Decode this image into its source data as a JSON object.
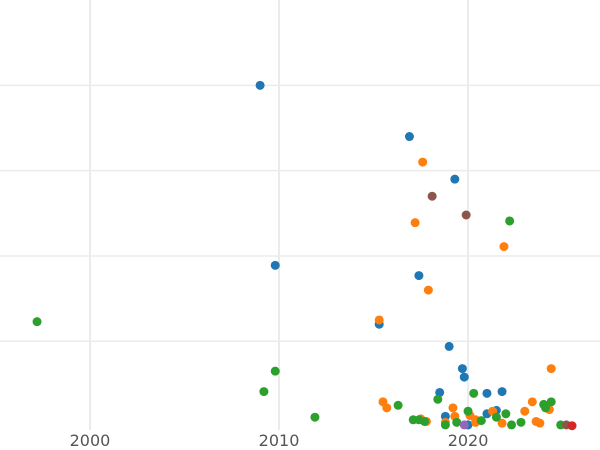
{
  "chart_data": {
    "type": "scatter",
    "title": "",
    "xlabel": "",
    "ylabel": "",
    "xlim": [
      1995.24,
      2026.98
    ],
    "ylim": [
      -0.04,
      5.0
    ],
    "x_ticks": [
      2000,
      2010,
      2020
    ],
    "x_tick_labels": [
      "2000",
      "2010",
      "2020"
    ],
    "y_gridlines": [
      1,
      2,
      3,
      4
    ],
    "grid": true,
    "legend": "none",
    "series": [
      {
        "color": "#1f77b4",
        "points": [
          [
            2009.0,
            4.0
          ],
          [
            2016.9,
            3.4
          ],
          [
            2019.3,
            2.9
          ],
          [
            2009.8,
            1.89
          ],
          [
            2017.4,
            1.77
          ],
          [
            2015.3,
            1.2
          ],
          [
            2019.0,
            0.94
          ],
          [
            2019.7,
            0.68
          ],
          [
            2019.8,
            0.58
          ],
          [
            2018.5,
            0.4
          ],
          [
            2021.0,
            0.39
          ],
          [
            2021.8,
            0.41
          ],
          [
            2018.8,
            0.12
          ],
          [
            2021.0,
            0.15
          ],
          [
            2021.5,
            0.19
          ],
          [
            2020.0,
            0.02
          ]
        ]
      },
      {
        "color": "#ff7f0e",
        "points": [
          [
            2017.6,
            3.1
          ],
          [
            2017.2,
            2.39
          ],
          [
            2021.9,
            2.11
          ],
          [
            2017.9,
            1.6
          ],
          [
            2015.3,
            1.25
          ],
          [
            2024.4,
            0.68
          ],
          [
            2015.5,
            0.29
          ],
          [
            2015.7,
            0.22
          ],
          [
            2019.2,
            0.22
          ],
          [
            2023.4,
            0.29
          ],
          [
            2023.0,
            0.18
          ],
          [
            2024.3,
            0.2
          ],
          [
            2017.5,
            0.09
          ],
          [
            2019.3,
            0.12
          ],
          [
            2020.1,
            0.13
          ],
          [
            2021.3,
            0.18
          ],
          [
            2017.8,
            0.06
          ],
          [
            2018.8,
            0.05
          ],
          [
            2020.4,
            0.08
          ],
          [
            2023.6,
            0.06
          ],
          [
            2023.8,
            0.04
          ],
          [
            2021.8,
            0.04
          ],
          [
            2020.4,
            0.05
          ]
        ]
      },
      {
        "color": "#2ca02c",
        "points": [
          [
            1997.2,
            1.23
          ],
          [
            2009.8,
            0.65
          ],
          [
            2009.2,
            0.41
          ],
          [
            2011.9,
            0.11
          ],
          [
            2022.2,
            2.41
          ],
          [
            2016.3,
            0.25
          ],
          [
            2018.4,
            0.32
          ],
          [
            2020.3,
            0.39
          ],
          [
            2024.4,
            0.29
          ],
          [
            2024.0,
            0.26
          ],
          [
            2024.1,
            0.22
          ],
          [
            2017.1,
            0.08
          ],
          [
            2017.4,
            0.08
          ],
          [
            2017.7,
            0.06
          ],
          [
            2020.0,
            0.18
          ],
          [
            2021.5,
            0.11
          ],
          [
            2022.0,
            0.15
          ],
          [
            2019.4,
            0.05
          ],
          [
            2020.7,
            0.07
          ],
          [
            2022.8,
            0.05
          ],
          [
            2022.3,
            0.02
          ],
          [
            2024.9,
            0.02
          ],
          [
            2018.8,
            0.02
          ]
        ]
      },
      {
        "color": "#8c564b",
        "points": [
          [
            2018.1,
            2.7
          ],
          [
            2019.9,
            2.48
          ],
          [
            2025.2,
            0.02
          ]
        ]
      },
      {
        "color": "#9467bd",
        "points": [
          [
            2019.8,
            0.02
          ]
        ]
      },
      {
        "color": "#d62728",
        "points": [
          [
            2025.5,
            0.01
          ]
        ]
      }
    ]
  }
}
